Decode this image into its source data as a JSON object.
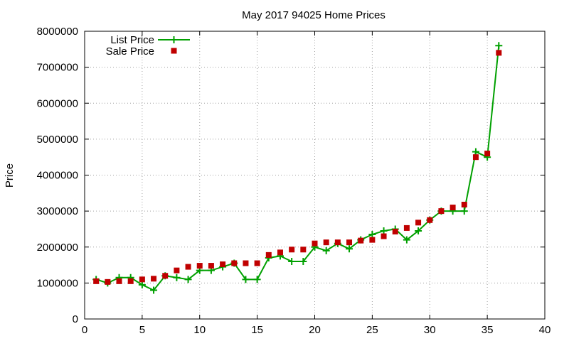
{
  "chart_data": {
    "type": "line",
    "title": "May 2017 94025 Home Prices",
    "xlabel": "",
    "ylabel": "Price",
    "xlim": [
      0,
      40
    ],
    "ylim": [
      0,
      8000000
    ],
    "xticks": [
      0,
      5,
      10,
      15,
      20,
      25,
      30,
      35,
      40
    ],
    "yticks": [
      0,
      1000000,
      2000000,
      3000000,
      4000000,
      5000000,
      6000000,
      7000000,
      8000000
    ],
    "grid": true,
    "legend_position": "top-left",
    "series": [
      {
        "name": "List Price",
        "style": "line+cross",
        "color": "#00a000",
        "x": [
          1,
          2,
          3,
          4,
          5,
          6,
          7,
          8,
          9,
          10,
          11,
          12,
          13,
          14,
          15,
          16,
          17,
          18,
          19,
          20,
          21,
          22,
          23,
          24,
          25,
          26,
          27,
          28,
          29,
          30,
          31,
          32,
          33,
          34,
          35,
          36
        ],
        "values": [
          1100000,
          1000000,
          1150000,
          1150000,
          950000,
          800000,
          1200000,
          1150000,
          1100000,
          1350000,
          1350000,
          1450000,
          1550000,
          1100000,
          1100000,
          1700000,
          1750000,
          1600000,
          1600000,
          2000000,
          1900000,
          2100000,
          1950000,
          2200000,
          2350000,
          2450000,
          2500000,
          2200000,
          2450000,
          2750000,
          3000000,
          3000000,
          3000000,
          4650000,
          4500000,
          7600000
        ]
      },
      {
        "name": "Sale Price",
        "style": "square",
        "color": "#c00000",
        "x": [
          1,
          2,
          3,
          4,
          5,
          6,
          7,
          8,
          9,
          10,
          11,
          12,
          13,
          14,
          15,
          16,
          17,
          18,
          19,
          20,
          21,
          22,
          23,
          24,
          25,
          26,
          27,
          28,
          29,
          30,
          31,
          32,
          33,
          34,
          35,
          36
        ],
        "values": [
          1050000,
          1030000,
          1050000,
          1050000,
          1100000,
          1120000,
          1200000,
          1350000,
          1450000,
          1480000,
          1480000,
          1520000,
          1550000,
          1550000,
          1550000,
          1780000,
          1850000,
          1930000,
          1930000,
          2100000,
          2130000,
          2130000,
          2130000,
          2180000,
          2200000,
          2300000,
          2430000,
          2530000,
          2680000,
          2750000,
          3000000,
          3100000,
          3180000,
          4500000,
          4600000,
          7400000
        ]
      }
    ]
  }
}
